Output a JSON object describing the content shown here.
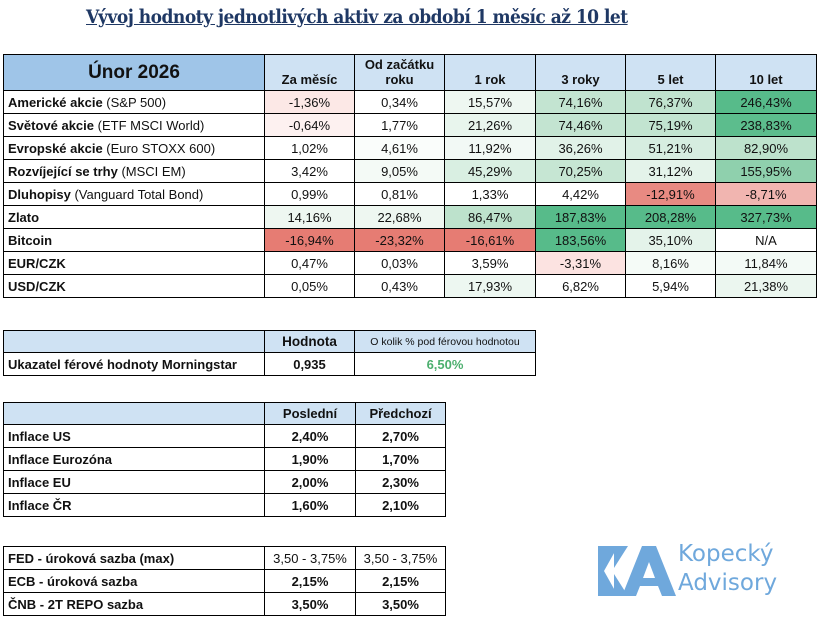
{
  "title": "Vývoj hodnoty jednotlivých aktiv za období 1 měsíc až 10 let",
  "returns_table": {
    "period": "Únor 2026",
    "columns": [
      "Za měsíc",
      "Od začátku roku",
      "1 rok",
      "3 roky",
      "5 let",
      "10 let"
    ],
    "column_lines": [
      [
        "Za měsíc"
      ],
      [
        "Od začátku",
        "roku"
      ],
      [
        "1 rok"
      ],
      [
        "3 roky"
      ],
      [
        "5 let"
      ],
      [
        "10 let"
      ]
    ],
    "rows": [
      {
        "name": "Americké akcie",
        "sub": " (S&P 500)",
        "values": [
          "-1,36%",
          "0,34%",
          "15,57%",
          "74,16%",
          "76,37%",
          "246,43%"
        ],
        "colors": [
          "#fce8e6",
          "#ffffff",
          "#eef7f1",
          "#c3e4d1",
          "#c0e3cf",
          "#57bb8a"
        ]
      },
      {
        "name": "Světové akcie",
        "sub": " (ETF MSCI World)",
        "values": [
          "-0,64%",
          "1,77%",
          "21,26%",
          "74,46%",
          "75,19%",
          "238,83%"
        ],
        "colors": [
          "#fdf1f0",
          "#ffffff",
          "#e8f5ed",
          "#c3e4d1",
          "#c2e4d0",
          "#5cbd8d"
        ]
      },
      {
        "name": "Evropské akcie",
        "sub": " (Euro STOXX 600)",
        "values": [
          "1,02%",
          "4,61%",
          "11,92%",
          "36,26%",
          "51,21%",
          "82,90%"
        ],
        "colors": [
          "#ffffff",
          "#fafdfb",
          "#f2f9f5",
          "#e1f2e8",
          "#d6ede0",
          "#bde2cc"
        ]
      },
      {
        "name": "Rozvíjející se trhy",
        "sub": " (MSCI EM)",
        "values": [
          "3,42%",
          "9,05%",
          "45,29%",
          "70,25%",
          "31,12%",
          "155,95%"
        ],
        "colors": [
          "#ffffff",
          "#f4faf6",
          "#d9efe2",
          "#c6e6d3",
          "#e4f3ea",
          "#8fd0ad"
        ]
      },
      {
        "name": "Dluhopisy",
        "sub": " (Vanguard Total Bond)",
        "values": [
          "0,99%",
          "0,81%",
          "1,33%",
          "4,42%",
          "-12,91%",
          "-8,71%"
        ],
        "colors": [
          "#ffffff",
          "#ffffff",
          "#ffffff",
          "#ffffff",
          "#e88a82",
          "#f1b5b0"
        ]
      },
      {
        "name": "Zlato",
        "sub": "",
        "values": [
          "14,16%",
          "22,68%",
          "86,47%",
          "187,83%",
          "208,28%",
          "327,73%"
        ],
        "colors": [
          "#eef7f1",
          "#eef7f1",
          "#bde2cc",
          "#57bb8a",
          "#57bb8a",
          "#57bb8a"
        ]
      },
      {
        "name": "Bitcoin",
        "sub": "",
        "values": [
          "-16,94%",
          "-23,32%",
          "-16,61%",
          "183,56%",
          "35,10%",
          "N/A"
        ],
        "colors": [
          "#e67c73",
          "#e67c73",
          "#e67c73",
          "#57bb8a",
          "#e4f3ea",
          "#ffffff"
        ]
      },
      {
        "name": "EUR/CZK",
        "sub": "",
        "values": [
          "0,47%",
          "0,03%",
          "3,59%",
          "-3,31%",
          "8,16%",
          "11,84%"
        ],
        "colors": [
          "#ffffff",
          "#ffffff",
          "#ffffff",
          "#fce3e1",
          "#f5fbf7",
          "#f3faf6"
        ]
      },
      {
        "name": "USD/CZK",
        "sub": "",
        "values": [
          "0,05%",
          "0,43%",
          "17,93%",
          "6,82%",
          "5,94%",
          "21,38%"
        ],
        "colors": [
          "#ffffff",
          "#ffffff",
          "#edf7f1",
          "#ffffff",
          "#ffffff",
          "#ebf6ef"
        ]
      }
    ]
  },
  "morningstar": {
    "col_value": "Hodnota",
    "col_below": "O kolik % pod férovou hodnotou",
    "label": "Ukazatel férové hodnoty Morningstar",
    "value": "0,935",
    "below": "6,50%"
  },
  "inflation": {
    "col_last": "Poslední",
    "col_prev": "Předchozí",
    "rows": [
      {
        "label": "Inflace US",
        "last": "2,40%",
        "prev": "2,70%"
      },
      {
        "label": "Inflace Eurozóna",
        "last": "1,90%",
        "prev": "1,70%"
      },
      {
        "label": "Inflace EU",
        "last": "2,00%",
        "prev": "2,30%"
      },
      {
        "label": "Inflace ČR",
        "last": "1,60%",
        "prev": "2,10%"
      }
    ]
  },
  "rates": {
    "rows": [
      {
        "label": "FED - úroková sazba (max)",
        "last": "3,50 - 3,75%",
        "prev": "3,50 - 3,75%"
      },
      {
        "label": "ECB - úroková sazba",
        "last": "2,15%",
        "prev": "2,15%"
      },
      {
        "label": "ČNB - 2T REPO sazba",
        "last": "3,50%",
        "prev": "3,50%"
      }
    ]
  },
  "logo": {
    "line1": "Kopecký",
    "line2": "Advisory",
    "color": "#6fa8dc"
  }
}
